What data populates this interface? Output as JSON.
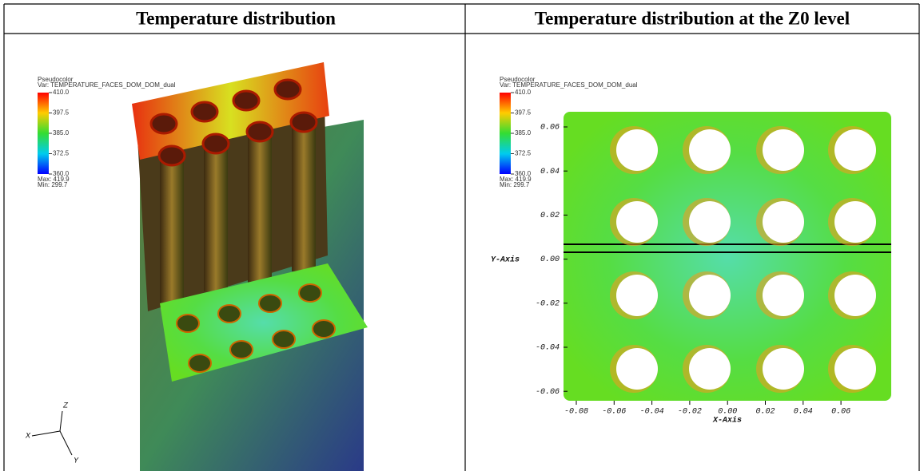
{
  "table": {
    "headers": [
      "Temperature distribution",
      "Temperature distribution at the Z0 level"
    ]
  },
  "left": {
    "legend": {
      "title": "Pseudocolor",
      "var": "Var: TEMPERATURE_FACES_DOM_DOM_dual",
      "ticks": [
        "410.0",
        "397.5",
        "385.0",
        "372.5",
        "360.0"
      ],
      "max": "Max: 419.9",
      "min": "Min: 299.7"
    },
    "triad": [
      "Z",
      "X",
      "Y"
    ]
  },
  "right": {
    "legend": {
      "title": "Pseudocolor",
      "var": "Var: TEMPERATURE_FACES_DOM_DOM_dual",
      "ticks": [
        "410.0",
        "397.5",
        "385.0",
        "372.5",
        "360.0"
      ],
      "max": "Max: 419.9",
      "min": "Min: 299.7"
    },
    "y_axis_label": "Y-Axis",
    "x_axis_label": "X-Axis",
    "yticks": [
      "0.06",
      "0.04",
      "0.02",
      "0.00",
      "-0.02",
      "-0.04",
      "-0.06"
    ],
    "xticks": [
      "-0.08",
      "-0.06",
      "-0.04",
      "-0.02",
      "0.00",
      "0.02",
      "0.04",
      "0.06"
    ]
  }
}
